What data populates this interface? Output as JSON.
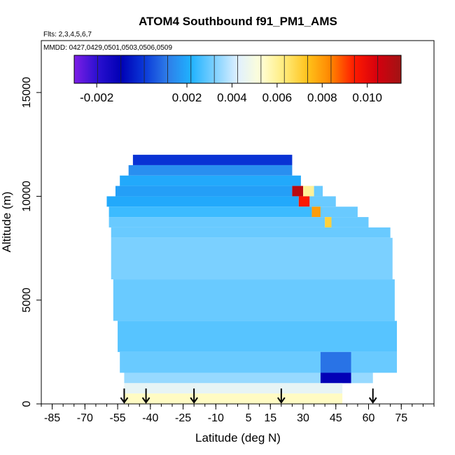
{
  "chart_data": {
    "type": "heatmap",
    "title": "ATOM4 Southbound f91_PM1_AMS",
    "flights_label": "Flts: 2,3,4,5,6,7",
    "dates_label": "MMDD: 0427,0429,0501,0503,0506,0509",
    "xlabel": "Latitude (deg N)",
    "ylabel": "Altitude (m)",
    "xlim": [
      -90,
      90
    ],
    "ylim": [
      0,
      17500
    ],
    "x_major_ticks": [
      -85,
      -70,
      -55,
      -40,
      -25,
      -10,
      5,
      15,
      30,
      45,
      60,
      75
    ],
    "x_major_tick_labels": [
      "-85",
      "-70",
      "-55",
      "-40",
      "-25",
      "-10",
      "5",
      "15",
      "30",
      "45",
      "60",
      "75"
    ],
    "y_ticks": [
      0,
      5000,
      10000,
      15000
    ],
    "y_tick_labels": [
      "0",
      "5000",
      "10000",
      "15000"
    ],
    "colorbar": {
      "range": [
        -0.003,
        0.0115
      ],
      "ticks": [
        -0.002,
        0.002,
        0.004,
        0.006,
        0.008,
        0.01
      ],
      "tick_labels": [
        "-0.002",
        "0.002",
        "0.004",
        "0.006",
        "0.008",
        "0.010"
      ],
      "colors": [
        "#7d1ee6",
        "#2b10d0",
        "#0000b4",
        "#0a38d8",
        "#2e7de8",
        "#1fb2ff",
        "#7cd0ff",
        "#dff0ff",
        "#ffffd6",
        "#ffeb7a",
        "#ffc21a",
        "#ff8400",
        "#ff1a00",
        "#d4000e",
        "#a01414"
      ]
    },
    "profile_latitudes": [
      -52,
      -42,
      -20,
      20,
      62
    ],
    "cells": [
      {
        "lat0": -48,
        "lat1": 25,
        "alt0": 11500,
        "alt1": 12000,
        "v": 0.0
      },
      {
        "lat0": -50,
        "lat1": 25,
        "alt0": 11000,
        "alt1": 11500,
        "v": 0.0015
      },
      {
        "lat0": -54,
        "lat1": 29,
        "alt0": 10500,
        "alt1": 11000,
        "v": 0.002
      },
      {
        "lat0": -56,
        "lat1": 25,
        "alt0": 10000,
        "alt1": 10500,
        "v": 0.0018
      },
      {
        "lat0": 25,
        "lat1": 30,
        "alt0": 10000,
        "alt1": 10500,
        "v": 0.011
      },
      {
        "lat0": 30,
        "lat1": 35,
        "alt0": 10000,
        "alt1": 10500,
        "v": 0.006
      },
      {
        "lat0": 35,
        "lat1": 39,
        "alt0": 10000,
        "alt1": 10500,
        "v": 0.003
      },
      {
        "lat0": -60,
        "lat1": 28,
        "alt0": 9500,
        "alt1": 10000,
        "v": 0.002
      },
      {
        "lat0": 28,
        "lat1": 33,
        "alt0": 9500,
        "alt1": 10000,
        "v": 0.0095
      },
      {
        "lat0": 33,
        "lat1": 45,
        "alt0": 9500,
        "alt1": 10000,
        "v": 0.003
      },
      {
        "lat0": -59,
        "lat1": 34,
        "alt0": 9000,
        "alt1": 9500,
        "v": 0.0025
      },
      {
        "lat0": 34,
        "lat1": 38,
        "alt0": 9000,
        "alt1": 9500,
        "v": 0.008
      },
      {
        "lat0": 38,
        "lat1": 55,
        "alt0": 9000,
        "alt1": 9500,
        "v": 0.003
      },
      {
        "lat0": -59,
        "lat1": 40,
        "alt0": 8500,
        "alt1": 9000,
        "v": 0.003
      },
      {
        "lat0": 40,
        "lat1": 43,
        "alt0": 8500,
        "alt1": 9000,
        "v": 0.007
      },
      {
        "lat0": 43,
        "lat1": 60,
        "alt0": 8500,
        "alt1": 9000,
        "v": 0.003
      },
      {
        "lat0": -58,
        "lat1": 70,
        "alt0": 8000,
        "alt1": 8500,
        "v": 0.003
      },
      {
        "lat0": -58,
        "lat1": 71,
        "alt0": 6000,
        "alt1": 8000,
        "v": 0.0032
      },
      {
        "lat0": -57,
        "lat1": 72,
        "alt0": 4000,
        "alt1": 6000,
        "v": 0.003
      },
      {
        "lat0": -55,
        "lat1": 73,
        "alt0": 2500,
        "alt1": 4000,
        "v": 0.0028
      },
      {
        "lat0": -54,
        "lat1": 73,
        "alt0": 1500,
        "alt1": 2500,
        "v": 0.003
      },
      {
        "lat0": 38,
        "lat1": 52,
        "alt0": 1500,
        "alt1": 2500,
        "v": 0.001
      },
      {
        "lat0": -52,
        "lat1": 62,
        "alt0": 1000,
        "alt1": 1500,
        "v": 0.0035
      },
      {
        "lat0": 38,
        "lat1": 52,
        "alt0": 1000,
        "alt1": 1500,
        "v": -0.001
      },
      {
        "lat0": -52,
        "lat1": 48,
        "alt0": 500,
        "alt1": 1000,
        "v": 0.0045
      },
      {
        "lat0": -52,
        "lat1": 48,
        "alt0": 0,
        "alt1": 500,
        "v": 0.0055
      }
    ]
  }
}
